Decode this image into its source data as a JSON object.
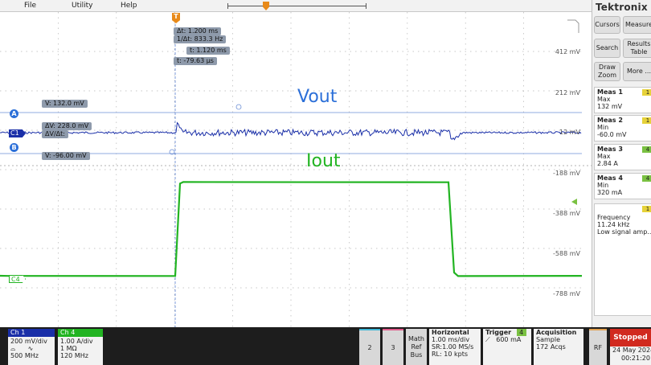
{
  "menu": {
    "file": "File",
    "utility": "Utility",
    "help": "Help"
  },
  "cursor_readout": {
    "delta_t": "Δt:    1.200 ms",
    "inv_delta_t": "1/Δt:  833.3 Hz",
    "t1": "t:     1.120 ms",
    "t2": "t:   -79.63 µs"
  },
  "cursor_a": {
    "badge": "A",
    "value": "V:  132.0 mV"
  },
  "cursor_b": {
    "badge": "B",
    "value": "V:  -96.00 mV"
  },
  "delta_v": {
    "line1": "ΔV:       228.0 mV",
    "line2": "ΔV/Δt:"
  },
  "trigger_marker": "T",
  "voltage_labels": [
    "412 mV",
    "212 mV",
    "12 mV",
    "-188 mV",
    "-388 mV",
    "-588 mV",
    "-788 mV"
  ],
  "channel_markers": {
    "c1": "C1",
    "c4": "C4"
  },
  "trace_labels": {
    "vout": "Vout",
    "iout": "Iout"
  },
  "colors": {
    "ch1": "#1a2fa8",
    "ch4": "#22b422",
    "accent": "#2b6fd8",
    "stopped": "#d12a1f"
  },
  "right_panel": {
    "logo": "Tektronix",
    "buttons": {
      "cursors": "Cursors",
      "measure": "Measure",
      "search": "Search",
      "results_table": "Results Table",
      "draw_zoom": "Draw Zoom",
      "more": "More ..."
    },
    "measurements": [
      {
        "title": "Meas 1",
        "channel": "1",
        "type": "Max",
        "value": "132 mV"
      },
      {
        "title": "Meas 2",
        "channel": "1",
        "type": "Min",
        "value": "-60.0 mV"
      },
      {
        "title": "Meas 3",
        "channel": "4",
        "type": "Max",
        "value": "2.84 A"
      },
      {
        "title": "Meas 4",
        "channel": "4",
        "type": "Min",
        "value": "320 mA"
      }
    ],
    "freq": {
      "channel": "1",
      "label": "Frequency",
      "value": "11.24 kHz",
      "note": "Low signal amp..."
    }
  },
  "bottom": {
    "ch1": {
      "title": "Ch 1",
      "scale": "200 mV/div",
      "bw": "500 MHz"
    },
    "ch4": {
      "title": "Ch 4",
      "scale": "1.00 A/div",
      "imp": "1 MΩ",
      "bw": "120 MHz"
    },
    "btn2": "2",
    "btn3": "3",
    "math": {
      "l1": "Math",
      "l2": "Ref",
      "l3": "Bus"
    },
    "horizontal": {
      "title": "Horizontal",
      "scale": "1.00 ms/div",
      "sr": "SR:1.00 MS/s",
      "rl": "RL: 10 kpts"
    },
    "trigger": {
      "title": "Trigger",
      "channel": "4",
      "level": "600 mA"
    },
    "acquisition": {
      "title": "Acquisition",
      "mode": "Sample",
      "count": "172 Acqs"
    },
    "rf": "RF",
    "status": "Stopped",
    "date": "24 May 2024",
    "time": "00:21:20"
  }
}
